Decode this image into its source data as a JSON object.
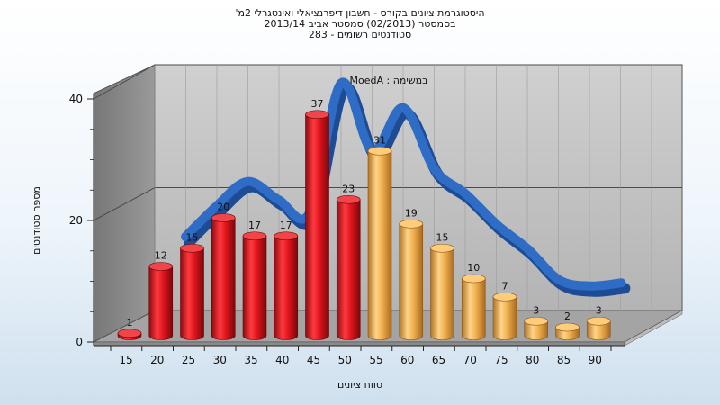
{
  "titles": [
    "היסטוגרמת ציונים בקורס - חשבון דיפרנציאלי ואינטגרלי 2מ'",
    "בסמסטר  (02/2013)  סמסטר אביב 2013/14",
    "סטודנטים רשומים - 283"
  ],
  "colors": {
    "red_bar": "#e0141c",
    "orange_bar": "#f0b050",
    "curve": "#2f6cc6",
    "wall_left": "#8a8a8a",
    "wall_back": "#c2c2c2",
    "floor": "#9a9a9a"
  },
  "chart_data": {
    "type": "bar",
    "categories": [
      "15",
      "20",
      "25",
      "30",
      "35",
      "40",
      "45",
      "50",
      "55",
      "60",
      "65",
      "70",
      "75",
      "80",
      "85",
      "90"
    ],
    "values": [
      1,
      12,
      15,
      20,
      17,
      17,
      37,
      23,
      31,
      19,
      15,
      10,
      7,
      3,
      2,
      3
    ],
    "bar_colors": [
      "red",
      "red",
      "red",
      "red",
      "red",
      "red",
      "red",
      "red",
      "orange",
      "orange",
      "orange",
      "orange",
      "orange",
      "orange",
      "orange",
      "orange"
    ],
    "xlabel": "טווח ציונים",
    "ylabel": "מספר סטודנטים",
    "ylim": [
      0,
      40
    ],
    "yticks": [
      0,
      20,
      40
    ],
    "grid": true,
    "annotation": "במשימה : MoedA",
    "curve": {
      "x": [
        25,
        30,
        35,
        40,
        45,
        50,
        55,
        60,
        65,
        70,
        75,
        80,
        85,
        90,
        95
      ],
      "values": [
        12,
        17,
        21,
        18,
        16,
        37,
        26,
        33,
        23,
        19,
        14,
        10,
        5,
        4,
        4.5
      ]
    }
  }
}
